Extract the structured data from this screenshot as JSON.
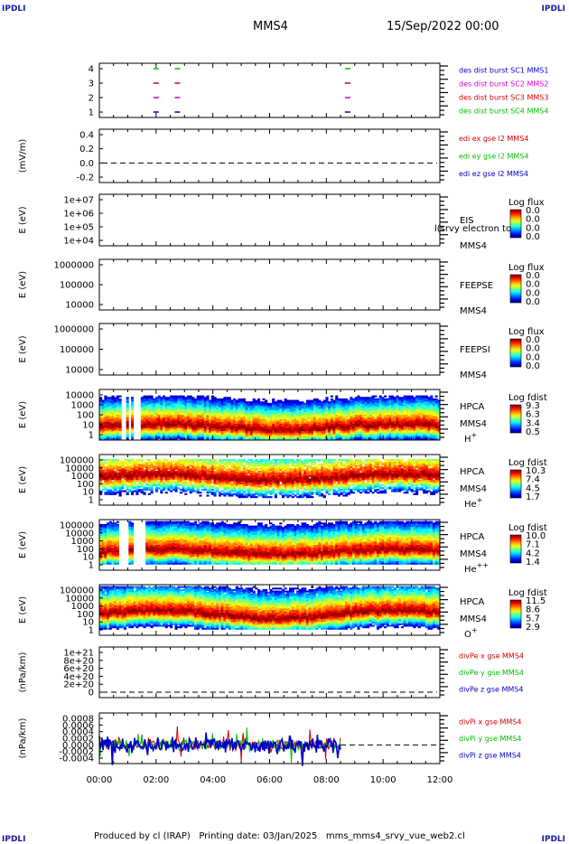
{
  "corners": {
    "tl": "IPDLI",
    "tr": "IPDLI",
    "bl": "IPDLI",
    "br": "IPDLI"
  },
  "header": {
    "spacecraft": "MMS4",
    "date": "15/Sep/2022 00:00"
  },
  "footer": "Produced by cl (IRAP)   Printing date: 03/Jan/2025   mms_mms4_srvy_vue_web2.cl",
  "colors": {
    "blue": "#0000cc",
    "magenta": "#d400d4",
    "red": "#d40000",
    "green": "#00c000",
    "dashed": "#000000"
  },
  "chart_data": {
    "type": "multi-panel-timeseries",
    "xaxis": {
      "range": [
        "00:00",
        "12:00"
      ],
      "ticks": [
        "00:00",
        "02:00",
        "04:00",
        "06:00",
        "08:00",
        "10:00",
        "12:00"
      ]
    },
    "panels": [
      {
        "id": "burst",
        "type": "event",
        "ylabel": "",
        "ylim": [
          0.5,
          4.5
        ],
        "ticks": [
          "4",
          "3",
          "2",
          "1"
        ],
        "legend": [
          {
            "text": "des dist burst SC1 MMS1",
            "color": "#0000cc"
          },
          {
            "text": "des dist burst SC2 MMS2",
            "color": "#d400d4"
          },
          {
            "text": "des dist burst SC3 MMS3",
            "color": "#d40000"
          },
          {
            "text": "des dist burst SC4 MMS4",
            "color": "#00c000"
          }
        ],
        "events": [
          {
            "times": [
              "02:00",
              "02:45",
              "08:45"
            ],
            "level": 4,
            "color": "#00c000"
          },
          {
            "times": [
              "02:00",
              "02:45",
              "08:45"
            ],
            "level": 3,
            "color": "#d40000"
          },
          {
            "times": [
              "02:00",
              "02:45",
              "08:45"
            ],
            "level": 2,
            "color": "#d400d4"
          },
          {
            "times": [
              "02:00",
              "02:45",
              "08:45"
            ],
            "level": 1,
            "color": "#0000cc"
          }
        ]
      },
      {
        "id": "edi",
        "type": "line",
        "ylabel": "(mV/m)",
        "ylim": [
          -0.3,
          0.6
        ],
        "ticks": [
          "0.4",
          "0.2",
          "0.0",
          "-0.2"
        ],
        "legend": [
          {
            "text": "edi ex gse l2 MMS4",
            "color": "#d40000"
          },
          {
            "text": "edi ey gse l2 MMS4",
            "color": "#00c000"
          },
          {
            "text": "edi ez gse l2 MMS4",
            "color": "#0000cc"
          }
        ]
      },
      {
        "id": "eis",
        "type": "spectrogram",
        "ylabel": "E (eV)",
        "log": true,
        "ylim": [
          10000,
          10000000
        ],
        "ticks": [
          "1e+07",
          "1e+06",
          "1e+05",
          "1e+04"
        ],
        "side": [
          "EIS",
          "MMS4"
        ],
        "overlay": "l(srvy electron to",
        "cbar": {
          "title": "Log flux",
          "labels": [
            "0.0",
            "0.0",
            "0.0",
            "0.0"
          ]
        }
      },
      {
        "id": "feepse",
        "type": "spectrogram",
        "ylabel": "E (eV)",
        "log": true,
        "ylim": [
          10000,
          1000000
        ],
        "ticks": [
          "1000000",
          "100000",
          "10000"
        ],
        "side": [
          "FEEPSE",
          "MMS4"
        ],
        "cbar": {
          "title": "Log flux",
          "labels": [
            "0.0",
            "0.0",
            "0.0",
            "0.0"
          ]
        }
      },
      {
        "id": "feepsi",
        "type": "spectrogram",
        "ylabel": "E (eV)",
        "log": true,
        "ylim": [
          10000,
          1000000
        ],
        "ticks": [
          "1000000",
          "100000",
          "10000"
        ],
        "side": [
          "FEEPSI",
          "MMS4"
        ],
        "cbar": {
          "title": "Log flux",
          "labels": [
            "0.0",
            "0.0",
            "0.0",
            "0.0"
          ]
        }
      },
      {
        "id": "hpca_h",
        "type": "spectrogram",
        "ylabel": "E (eV)",
        "log": true,
        "ylim": [
          1,
          40000
        ],
        "ticks": [
          "10000",
          "1000",
          "100",
          "10",
          "1"
        ],
        "side": [
          "HPCA",
          "MMS4",
          "H+"
        ],
        "cbar": {
          "title": "Log fdist",
          "labels": [
            "9.3",
            "6.3",
            "3.4",
            "0.5"
          ]
        }
      },
      {
        "id": "hpca_he",
        "type": "spectrogram",
        "ylabel": "E (eV)",
        "log": true,
        "ylim": [
          1,
          100000
        ],
        "ticks": [
          "100000",
          "10000",
          "1000",
          "100",
          "10",
          "1"
        ],
        "side": [
          "HPCA",
          "MMS4",
          "He+"
        ],
        "cbar": {
          "title": "Log fdist",
          "labels": [
            "10.3",
            "7.4",
            "4.5",
            "1.7"
          ]
        }
      },
      {
        "id": "hpca_hepp",
        "type": "spectrogram",
        "ylabel": "E (eV)",
        "log": true,
        "ylim": [
          1,
          100000
        ],
        "ticks": [
          "100000",
          "10000",
          "1000",
          "100",
          "10",
          "1"
        ],
        "side": [
          "HPCA",
          "MMS4",
          "He++"
        ],
        "cbar": {
          "title": "Log fdist",
          "labels": [
            "10.0",
            "7.1",
            "4.2",
            "1.4"
          ]
        }
      },
      {
        "id": "hpca_o",
        "type": "spectrogram",
        "ylabel": "E (eV)",
        "log": true,
        "ylim": [
          1,
          100000
        ],
        "ticks": [
          "100000",
          "10000",
          "1000",
          "100",
          "10",
          "1"
        ],
        "side": [
          "HPCA",
          "MMS4",
          "O+"
        ],
        "cbar": {
          "title": "Log fdist",
          "labels": [
            "11.5",
            "8.6",
            "5.7",
            "2.9"
          ]
        }
      },
      {
        "id": "divpe",
        "type": "line",
        "ylabel": "(nPa/km)",
        "ylim": [
          -1e+19,
          1.1e+21
        ],
        "ticks": [
          "1e+21",
          "8e+20",
          "6e+20",
          "4e+20",
          "2e+20",
          "0"
        ],
        "legend": [
          {
            "text": "divPe x gse MMS4",
            "color": "#d40000"
          },
          {
            "text": "divPe y gse MMS4",
            "color": "#00c000"
          },
          {
            "text": "divPe z gse MMS4",
            "color": "#0000cc"
          }
        ]
      },
      {
        "id": "divpi",
        "type": "line",
        "ylabel": "(nPa/km)",
        "ylim": [
          -0.0005,
          0.0009
        ],
        "ticks": [
          "0.0008",
          "0.0006",
          "0.0004",
          "0.0002",
          "0.0000",
          "-0.0002",
          "-0.0004"
        ],
        "data_end": "08:30",
        "legend": [
          {
            "text": "divPi x gse MMS4",
            "color": "#d40000"
          },
          {
            "text": "divPi y gse MMS4",
            "color": "#00c000"
          },
          {
            "text": "divPi z gse MMS4",
            "color": "#0000cc"
          }
        ]
      }
    ]
  }
}
